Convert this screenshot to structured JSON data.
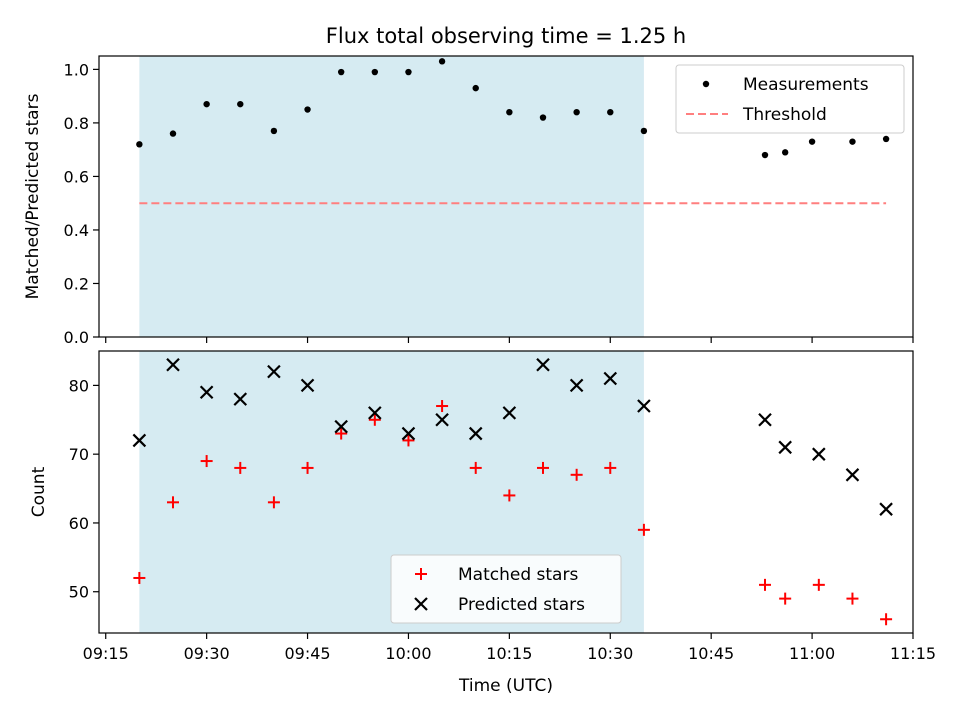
{
  "figure": {
    "title": "Flux total observing time = 1.25 h",
    "xlabel": "Time (UTC)"
  },
  "chart_data": [
    {
      "type": "scatter",
      "panel": "top",
      "title": "Flux total observing time = 1.25 h",
      "ylabel": "Matched/Predicted stars",
      "xlim": [
        "09:14",
        "11:15"
      ],
      "ylim": [
        0,
        1.05
      ],
      "yticks": [
        "0.0",
        "0.2",
        "0.4",
        "0.6",
        "0.8",
        "1.0"
      ],
      "shaded_span": {
        "x_start": "09:20",
        "x_end": "10:35",
        "color": "#add8e6"
      },
      "legend_position": "top-right",
      "series": [
        {
          "name": "Measurements",
          "marker": "dot",
          "color": "#000000",
          "points": [
            {
              "x": "09:20",
              "y": 0.72
            },
            {
              "x": "09:25",
              "y": 0.76
            },
            {
              "x": "09:30",
              "y": 0.87
            },
            {
              "x": "09:35",
              "y": 0.87
            },
            {
              "x": "09:40",
              "y": 0.77
            },
            {
              "x": "09:45",
              "y": 0.85
            },
            {
              "x": "09:50",
              "y": 0.99
            },
            {
              "x": "09:55",
              "y": 0.99
            },
            {
              "x": "10:00",
              "y": 0.99
            },
            {
              "x": "10:05",
              "y": 1.03
            },
            {
              "x": "10:10",
              "y": 0.93
            },
            {
              "x": "10:15",
              "y": 0.84
            },
            {
              "x": "10:20",
              "y": 0.82
            },
            {
              "x": "10:25",
              "y": 0.84
            },
            {
              "x": "10:30",
              "y": 0.84
            },
            {
              "x": "10:35",
              "y": 0.77
            },
            {
              "x": "10:53",
              "y": 0.68
            },
            {
              "x": "10:56",
              "y": 0.69
            },
            {
              "x": "11:00",
              "y": 0.73
            },
            {
              "x": "11:06",
              "y": 0.73
            },
            {
              "x": "11:11",
              "y": 0.74
            }
          ]
        },
        {
          "name": "Threshold",
          "type": "line",
          "style": "dashed",
          "color": "#ff7f7f",
          "points": [
            {
              "x": "09:20",
              "y": 0.5
            },
            {
              "x": "11:11",
              "y": 0.5
            }
          ]
        }
      ]
    },
    {
      "type": "scatter",
      "panel": "bottom",
      "xlabel": "Time (UTC)",
      "ylabel": "Count",
      "xlim": [
        "09:14",
        "11:15"
      ],
      "ylim": [
        44,
        85
      ],
      "yticks": [
        "50",
        "60",
        "70",
        "80"
      ],
      "xticks": [
        "09:15",
        "09:30",
        "09:45",
        "10:00",
        "10:15",
        "10:30",
        "10:45",
        "11:00",
        "11:15"
      ],
      "shaded_span": {
        "x_start": "09:20",
        "x_end": "10:35",
        "color": "#add8e6"
      },
      "legend_position": "lower-center",
      "series": [
        {
          "name": "Matched stars",
          "marker": "plus",
          "color": "#ff0000",
          "points": [
            {
              "x": "09:20",
              "y": 52
            },
            {
              "x": "09:25",
              "y": 63
            },
            {
              "x": "09:30",
              "y": 69
            },
            {
              "x": "09:35",
              "y": 68
            },
            {
              "x": "09:40",
              "y": 63
            },
            {
              "x": "09:45",
              "y": 68
            },
            {
              "x": "09:50",
              "y": 73
            },
            {
              "x": "09:55",
              "y": 75
            },
            {
              "x": "10:00",
              "y": 72
            },
            {
              "x": "10:05",
              "y": 77
            },
            {
              "x": "10:10",
              "y": 68
            },
            {
              "x": "10:15",
              "y": 64
            },
            {
              "x": "10:20",
              "y": 68
            },
            {
              "x": "10:25",
              "y": 67
            },
            {
              "x": "10:30",
              "y": 68
            },
            {
              "x": "10:35",
              "y": 59
            },
            {
              "x": "10:53",
              "y": 51
            },
            {
              "x": "10:56",
              "y": 49
            },
            {
              "x": "11:01",
              "y": 51
            },
            {
              "x": "11:06",
              "y": 49
            },
            {
              "x": "11:11",
              "y": 46
            }
          ]
        },
        {
          "name": "Predicted stars",
          "marker": "x",
          "color": "#000000",
          "points": [
            {
              "x": "09:20",
              "y": 72
            },
            {
              "x": "09:25",
              "y": 83
            },
            {
              "x": "09:30",
              "y": 79
            },
            {
              "x": "09:35",
              "y": 78
            },
            {
              "x": "09:40",
              "y": 82
            },
            {
              "x": "09:45",
              "y": 80
            },
            {
              "x": "09:50",
              "y": 74
            },
            {
              "x": "09:55",
              "y": 76
            },
            {
              "x": "10:00",
              "y": 73
            },
            {
              "x": "10:05",
              "y": 75
            },
            {
              "x": "10:10",
              "y": 73
            },
            {
              "x": "10:15",
              "y": 76
            },
            {
              "x": "10:20",
              "y": 83
            },
            {
              "x": "10:25",
              "y": 80
            },
            {
              "x": "10:30",
              "y": 81
            },
            {
              "x": "10:35",
              "y": 77
            },
            {
              "x": "10:53",
              "y": 75
            },
            {
              "x": "10:56",
              "y": 71
            },
            {
              "x": "11:01",
              "y": 70
            },
            {
              "x": "11:06",
              "y": 67
            },
            {
              "x": "11:11",
              "y": 62
            }
          ]
        }
      ]
    }
  ]
}
